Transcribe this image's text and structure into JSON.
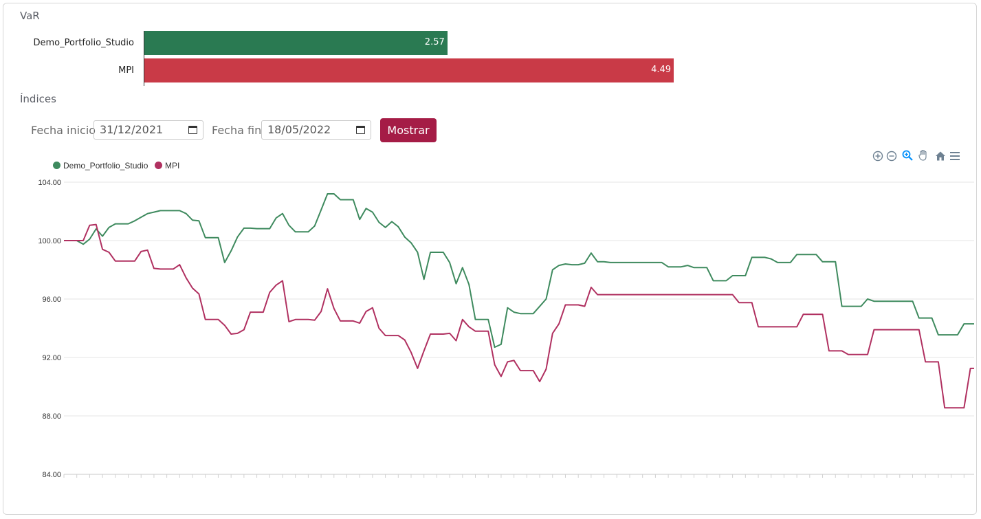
{
  "var_section": {
    "title": "VaR",
    "bars": [
      {
        "label": "Demo_Portfolio_Studio",
        "value": 2.57,
        "value_label": "2.57",
        "color": "#2a7a52"
      },
      {
        "label": "MPI",
        "value": 4.49,
        "value_label": "4.49",
        "color": "#c93a47"
      }
    ]
  },
  "indices_section": {
    "title": "Índices",
    "start_label": "Fecha inicio",
    "start_value": "31/12/2021",
    "end_label": "Fecha fin",
    "end_value": "18/05/2022",
    "button_label": "Mostrar"
  },
  "toolbar": {
    "icons": [
      "zoom-in-icon",
      "zoom-out-icon",
      "selection-zoom-icon",
      "pan-hand-icon",
      "home-reset-icon",
      "menu-icon"
    ]
  },
  "chart_data": {
    "type": "line",
    "ylim": [
      84,
      104
    ],
    "yticks": [
      "104.00",
      "100.00",
      "96.00",
      "92.00",
      "88.00",
      "84.00"
    ],
    "legend_position": "top-left",
    "grid": true,
    "series": [
      {
        "name": "Demo_Portfolio_Studio",
        "color": "#3e8a5e",
        "values": [
          100.0,
          100.0,
          100.0,
          99.75,
          100.1,
          100.8,
          100.3,
          100.9,
          101.15,
          101.15,
          101.15,
          101.35,
          101.6,
          101.85,
          101.95,
          102.05,
          102.05,
          102.05,
          102.05,
          101.85,
          101.4,
          101.35,
          100.2,
          100.2,
          100.2,
          98.5,
          99.3,
          100.25,
          100.85,
          100.85,
          100.82,
          100.82,
          100.82,
          101.55,
          101.85,
          101.05,
          100.6,
          100.6,
          100.6,
          101.0,
          102.1,
          103.2,
          103.2,
          102.8,
          102.8,
          102.8,
          101.45,
          102.2,
          101.95,
          101.25,
          100.9,
          101.3,
          100.95,
          100.25,
          99.85,
          99.2,
          97.35,
          99.2,
          99.2,
          99.2,
          98.5,
          97.05,
          98.15,
          97.0,
          94.6,
          94.6,
          94.6,
          92.7,
          92.9,
          95.4,
          95.1,
          95.0,
          95.0,
          95.0,
          95.5,
          96.0,
          98.0,
          98.3,
          98.4,
          98.35,
          98.35,
          98.45,
          99.15,
          98.55,
          98.55,
          98.5,
          98.5,
          98.5,
          98.5,
          98.5,
          98.5,
          98.5,
          98.5,
          98.5,
          98.2,
          98.2,
          98.2,
          98.3,
          98.15,
          98.15,
          98.15,
          97.25,
          97.25,
          97.25,
          97.6,
          97.6,
          97.6,
          98.85,
          98.85,
          98.85,
          98.75,
          98.5,
          98.5,
          98.5,
          99.05,
          99.05,
          99.05,
          99.05,
          98.55,
          98.55,
          98.55,
          95.5,
          95.5,
          95.5,
          95.5,
          96.0,
          95.85,
          95.85,
          95.85,
          95.85,
          95.85,
          95.85,
          95.85,
          94.7,
          94.7,
          94.7,
          93.55,
          93.55,
          93.55,
          93.55,
          94.3,
          94.3,
          94.3
        ]
      },
      {
        "name": "MPI",
        "color": "#b03060",
        "values": [
          100.0,
          100.0,
          100.0,
          100.0,
          101.05,
          101.1,
          99.4,
          99.2,
          98.6,
          98.6,
          98.6,
          98.6,
          99.25,
          99.35,
          98.1,
          98.05,
          98.05,
          98.05,
          98.35,
          97.45,
          96.75,
          96.35,
          94.6,
          94.6,
          94.6,
          94.2,
          93.6,
          93.65,
          93.9,
          95.1,
          95.1,
          95.1,
          96.45,
          96.95,
          97.25,
          94.45,
          94.6,
          94.6,
          94.6,
          94.55,
          95.15,
          96.7,
          95.35,
          94.5,
          94.5,
          94.5,
          94.35,
          95.15,
          95.4,
          94.0,
          93.5,
          93.5,
          93.5,
          93.2,
          92.35,
          91.25,
          92.45,
          93.6,
          93.6,
          93.6,
          93.65,
          93.15,
          94.6,
          94.1,
          93.8,
          93.8,
          93.8,
          91.5,
          90.7,
          91.7,
          91.8,
          91.1,
          91.1,
          91.1,
          90.35,
          91.2,
          93.65,
          94.3,
          95.6,
          95.6,
          95.6,
          95.5,
          96.8,
          96.3,
          96.3,
          96.3,
          96.3,
          96.3,
          96.3,
          96.3,
          96.3,
          96.3,
          96.3,
          96.3,
          96.3,
          96.3,
          96.3,
          96.3,
          96.3,
          96.3,
          96.3,
          96.3,
          96.3,
          96.3,
          96.3,
          95.75,
          95.75,
          95.75,
          94.1,
          94.1,
          94.1,
          94.1,
          94.1,
          94.1,
          94.1,
          94.95,
          94.95,
          94.95,
          94.95,
          92.45,
          92.45,
          92.45,
          92.2,
          92.2,
          92.2,
          92.2,
          93.9,
          93.9,
          93.9,
          93.9,
          93.9,
          93.9,
          93.9,
          93.9,
          91.7,
          91.7,
          91.7,
          88.55,
          88.55,
          88.55,
          88.55,
          91.25,
          91.25,
          91.25
        ]
      }
    ]
  }
}
